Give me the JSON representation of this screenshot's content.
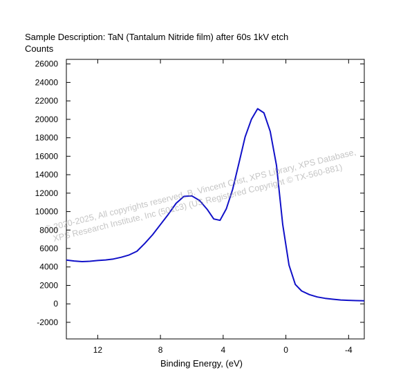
{
  "header": {
    "title": "Sample Description:  TaN (Tantalum Nitride film) after 60s 1kV etch",
    "ylabel": "Counts",
    "xlabel": "Binding Energy, (eV)"
  },
  "watermark": {
    "line1": "©  2020-2025,  All copyrights reserved,  B. Vincent Crist,  XPS Library, XPS Database,",
    "line2": "XPS Research Institute, Inc (501c3)  (US Registered Copyright © TX-560-881)"
  },
  "colors": {
    "line": "#1010c8",
    "axis": "#000000"
  },
  "chart_data": {
    "type": "line",
    "title": "Sample Description:  TaN (Tantalum Nitride film) after 60s 1kV etch",
    "xlabel": "Binding Energy, (eV)",
    "ylabel": "Counts",
    "xlim": [
      14,
      -5
    ],
    "x_reversed": true,
    "ylim": [
      -3800,
      26500
    ],
    "xticks": [
      12,
      8,
      4,
      0,
      -4
    ],
    "yticks": [
      -2000,
      0,
      2000,
      4000,
      6000,
      8000,
      10000,
      12000,
      14000,
      16000,
      18000,
      20000,
      22000,
      24000,
      26000
    ],
    "grid": false,
    "series": [
      {
        "points": [
          [
            14.0,
            4750
          ],
          [
            13.5,
            4650
          ],
          [
            13.0,
            4580
          ],
          [
            12.5,
            4620
          ],
          [
            12.0,
            4700
          ],
          [
            11.5,
            4760
          ],
          [
            11.0,
            4860
          ],
          [
            10.5,
            5050
          ],
          [
            10.0,
            5300
          ],
          [
            9.5,
            5700
          ],
          [
            9.0,
            6550
          ],
          [
            8.5,
            7500
          ],
          [
            8.0,
            8600
          ],
          [
            7.5,
            9700
          ],
          [
            7.0,
            10900
          ],
          [
            6.5,
            11650
          ],
          [
            6.0,
            11700
          ],
          [
            5.5,
            11200
          ],
          [
            5.0,
            10200
          ],
          [
            4.6,
            9200
          ],
          [
            4.2,
            9050
          ],
          [
            3.8,
            10300
          ],
          [
            3.4,
            12400
          ],
          [
            3.0,
            15200
          ],
          [
            2.6,
            18100
          ],
          [
            2.2,
            20000
          ],
          [
            1.8,
            21150
          ],
          [
            1.4,
            20700
          ],
          [
            1.0,
            18700
          ],
          [
            0.6,
            15000
          ],
          [
            0.2,
            8600
          ],
          [
            -0.2,
            4200
          ],
          [
            -0.6,
            2100
          ],
          [
            -1.0,
            1400
          ],
          [
            -1.5,
            1000
          ],
          [
            -2.0,
            750
          ],
          [
            -2.5,
            600
          ],
          [
            -3.0,
            500
          ],
          [
            -3.5,
            420
          ],
          [
            -4.0,
            380
          ],
          [
            -4.5,
            350
          ],
          [
            -5.0,
            330
          ]
        ]
      }
    ]
  }
}
